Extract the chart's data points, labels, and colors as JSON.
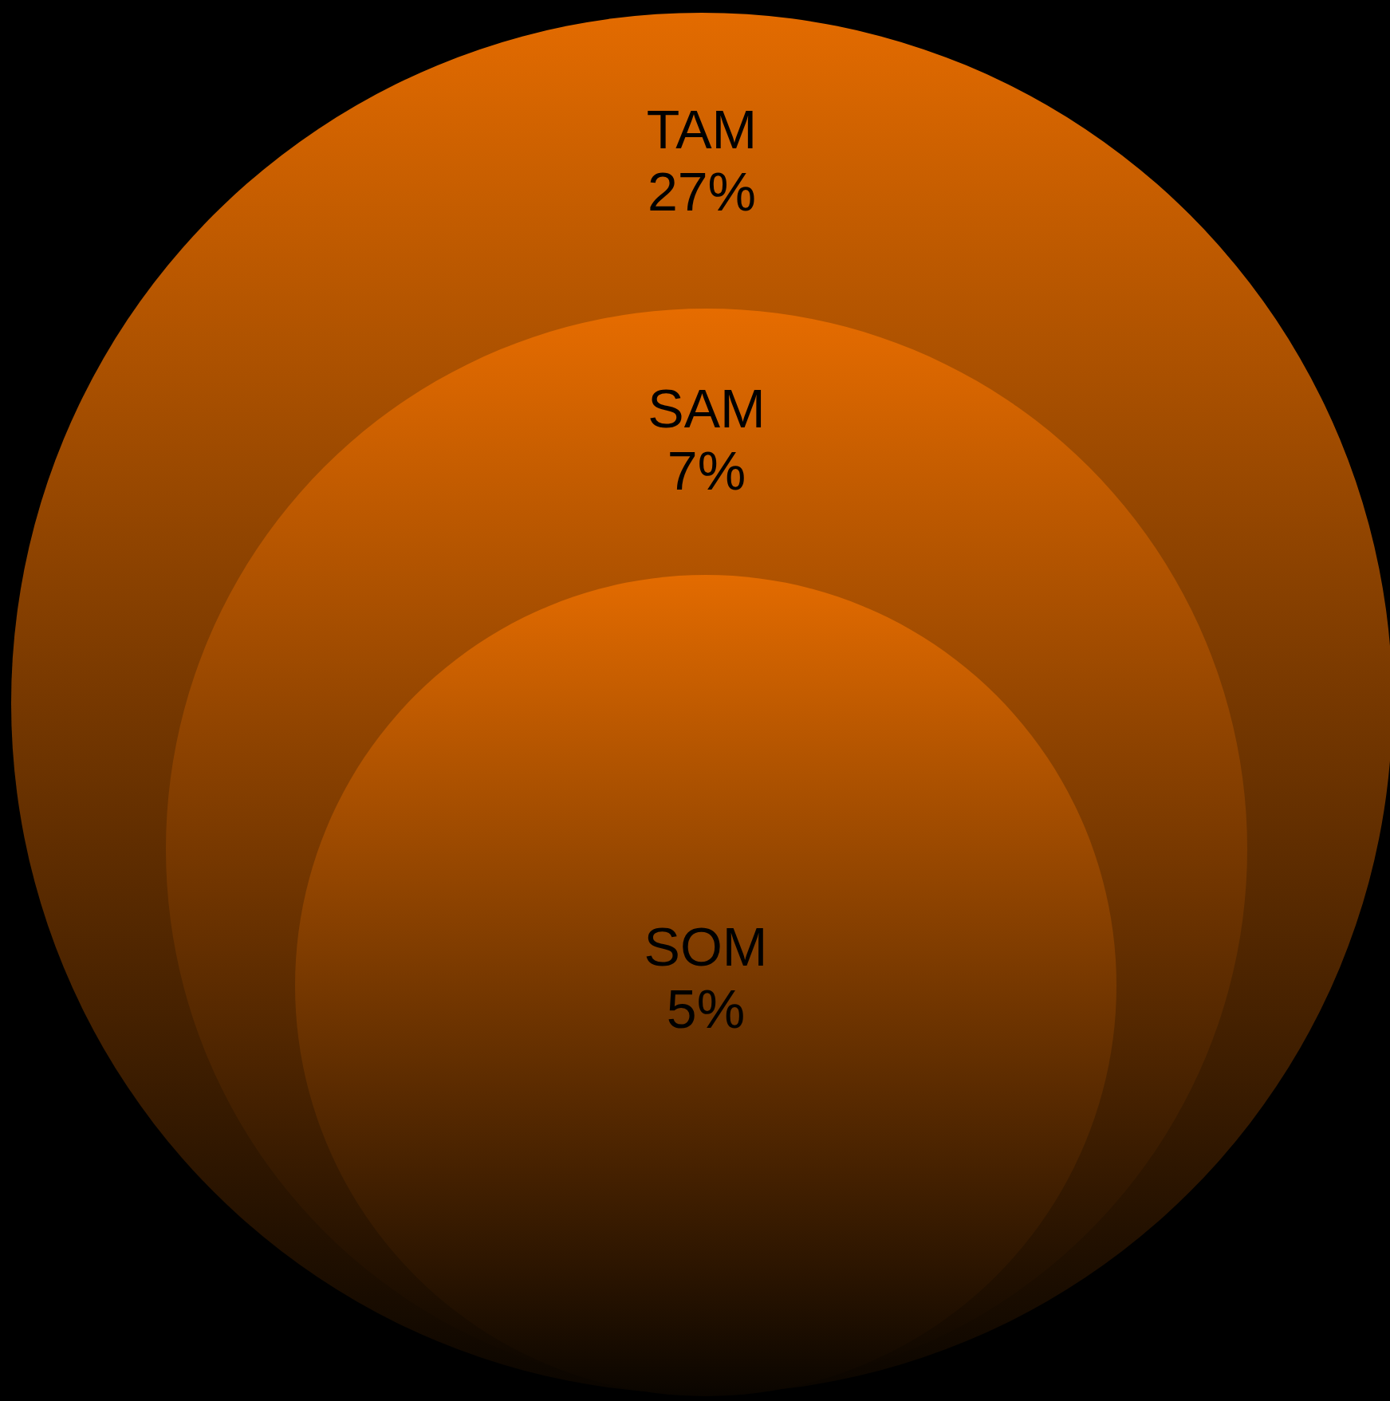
{
  "chart_data": {
    "type": "other",
    "categories": [
      "TAM",
      "SAM",
      "SOM"
    ],
    "values": [
      27,
      7,
      5
    ],
    "value_labels": [
      "27%",
      "7%",
      "5%"
    ],
    "colors": [
      "#e36b00",
      "#e66c00",
      "#e36b00"
    ]
  }
}
